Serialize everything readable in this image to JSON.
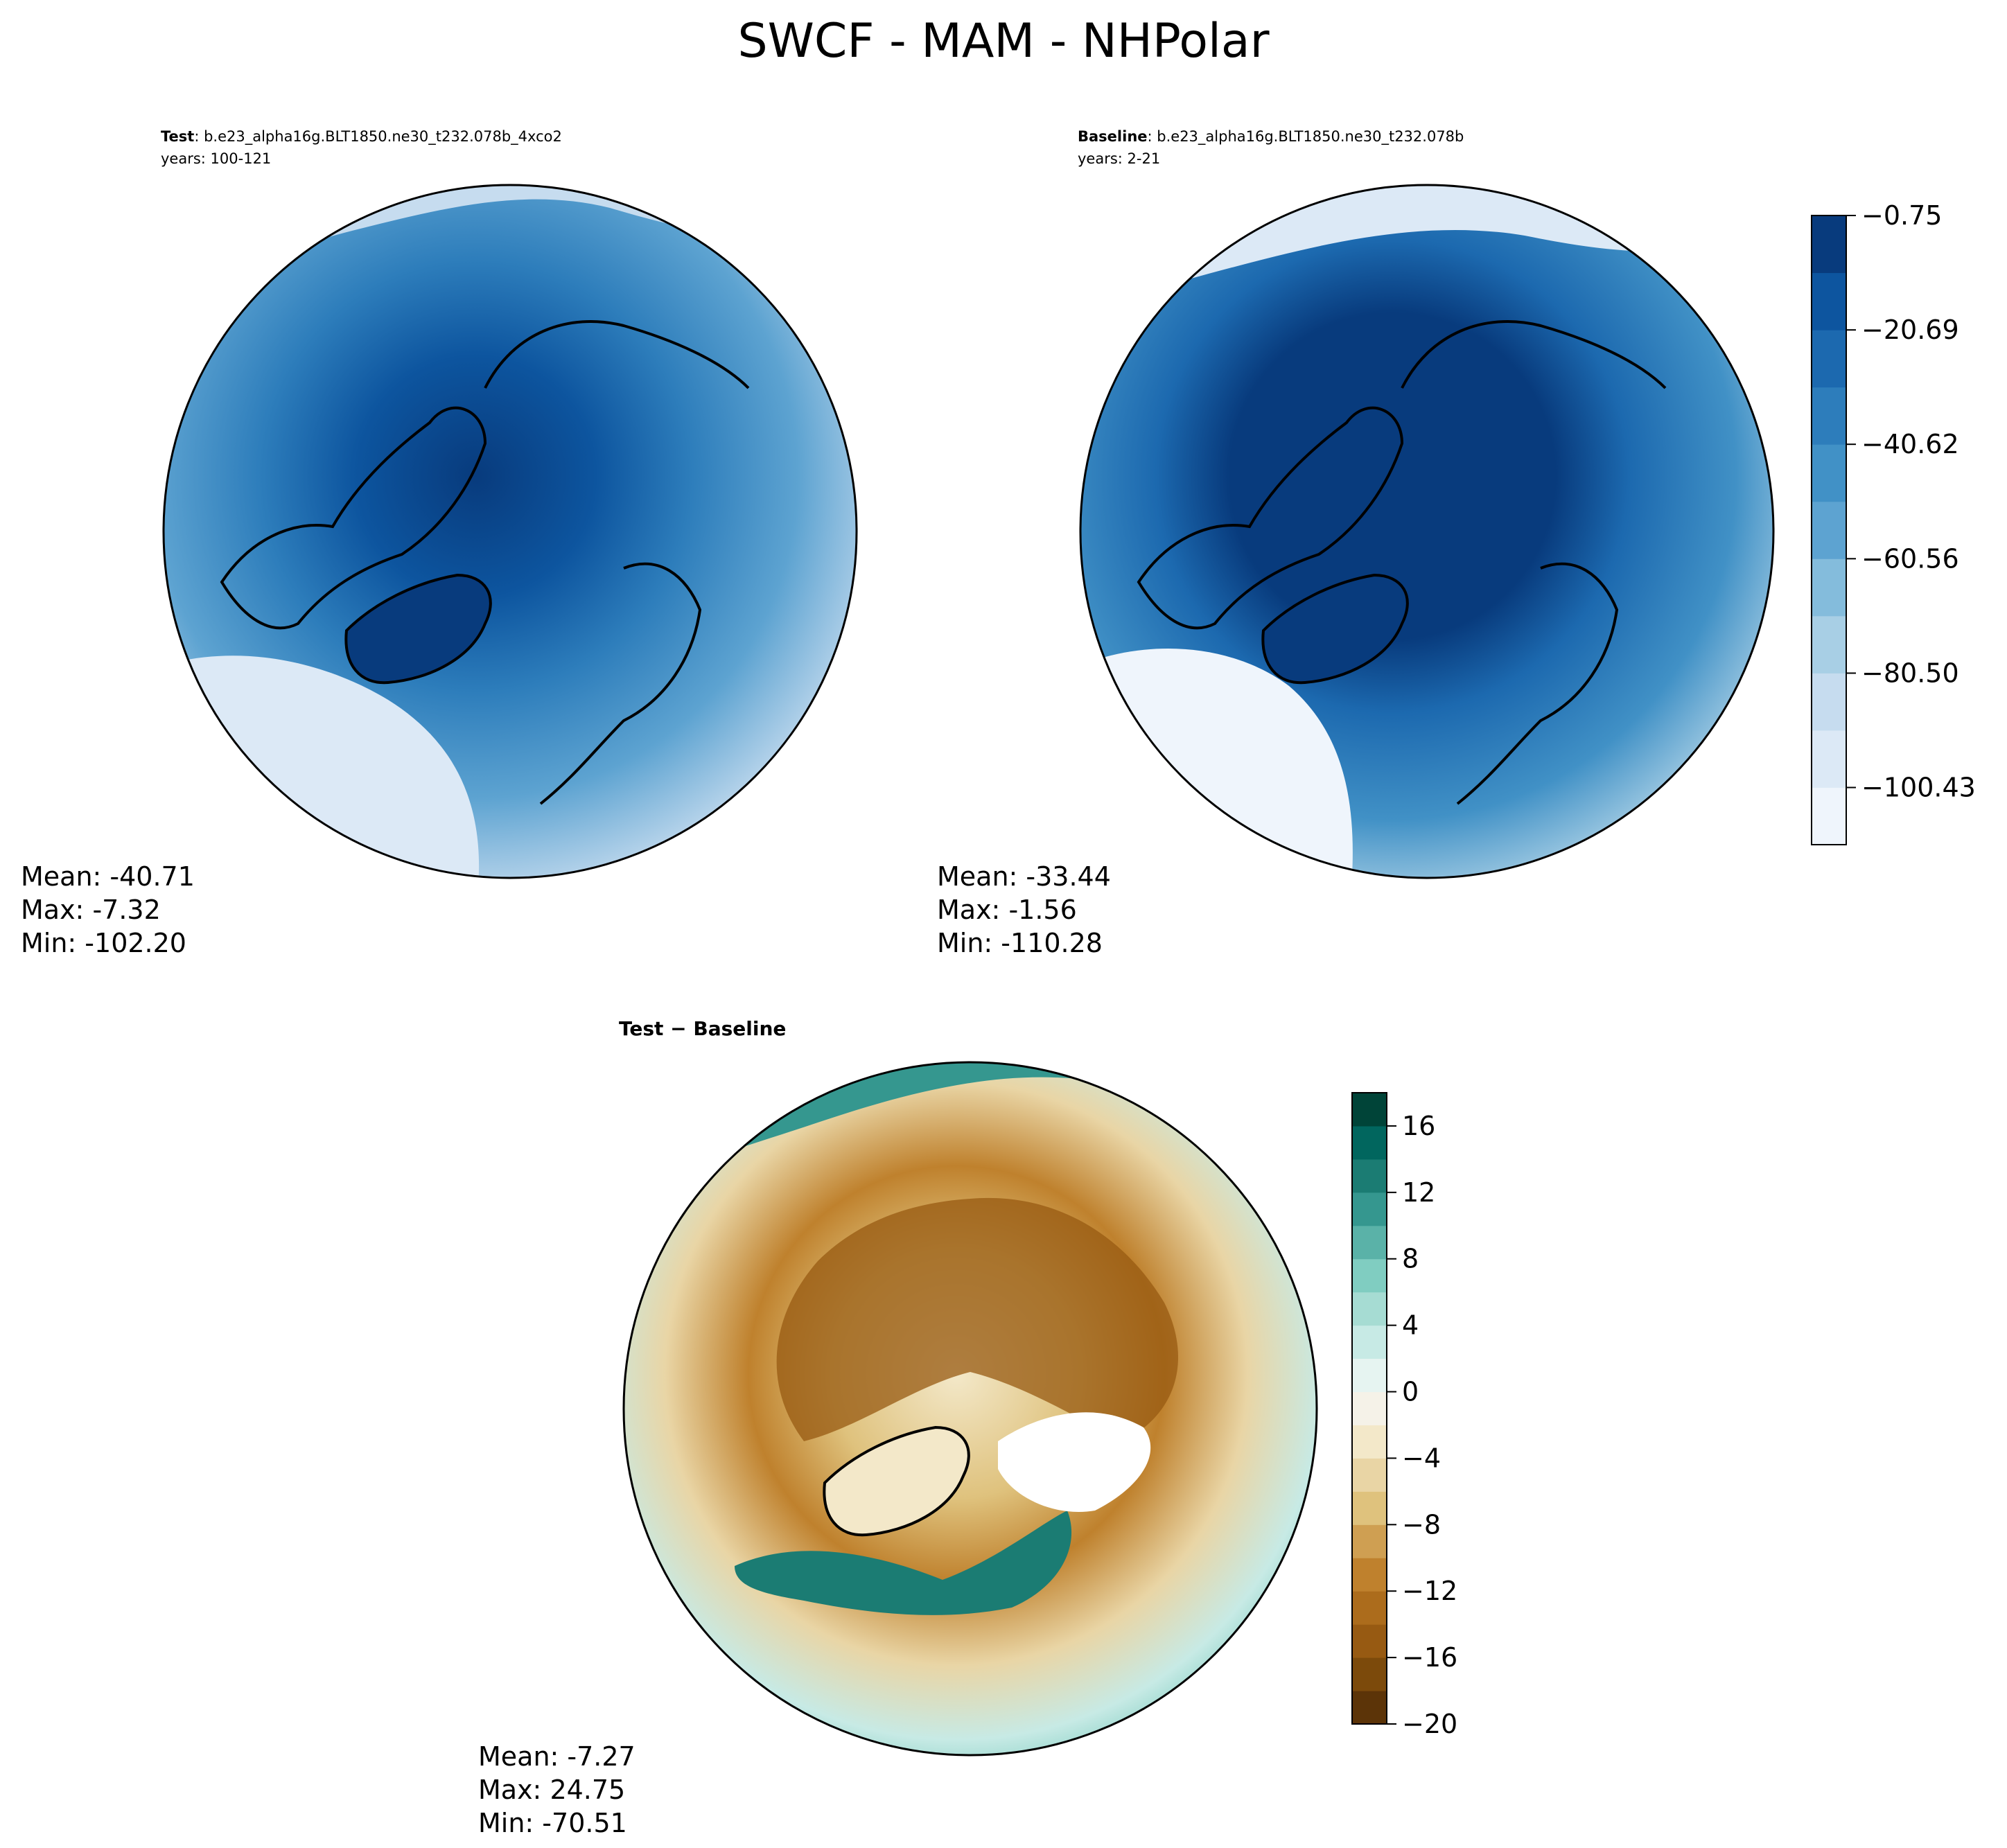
{
  "chart_data": {
    "type": "heatmap",
    "title": "SWCF - MAM - NHPolar",
    "projection": "north-polar-stereographic",
    "panels": [
      {
        "id": "test",
        "label_bold": "Test",
        "label_rest": ": b.e23_alpha16g.BLT1850.ne30_t232.078b_4xco2",
        "years": "years: 100-121",
        "stats": {
          "mean": "Mean: -40.71",
          "max": "Max: -7.32",
          "min": "Min: -102.20"
        },
        "colormap": "blues"
      },
      {
        "id": "baseline",
        "label_bold": "Baseline",
        "label_rest": ": b.e23_alpha16g.BLT1850.ne30_t232.078b",
        "years": "years: 2-21",
        "stats": {
          "mean": "Mean: -33.44",
          "max": "Max: -1.56",
          "min": "Min: -110.28"
        },
        "colormap": "blues"
      },
      {
        "id": "diff",
        "label_bold": "Test − Baseline",
        "stats": {
          "mean": "Mean: -7.27",
          "max": "Max: 24.75",
          "min": "Min: -70.51"
        },
        "colormap": "brown-teal"
      }
    ],
    "colorbars": [
      {
        "id": "blues",
        "range": [
          -110.39,
          -0.75
        ],
        "ticks": [
          -0.75,
          -20.69,
          -40.62,
          -60.56,
          -80.5,
          -100.43
        ],
        "tick_labels": [
          "−0.75",
          "−20.69",
          "−40.62",
          "−60.56",
          "−80.50",
          "−100.43"
        ],
        "levels": 11,
        "colors": [
          "#eff5fc",
          "#dce9f6",
          "#c6dcef",
          "#a8cfe5",
          "#84bcdc",
          "#5da3d1",
          "#4191c6",
          "#2d7dbb",
          "#1c69af",
          "#0d559f",
          "#083b7d"
        ]
      },
      {
        "id": "brown-teal",
        "range": [
          -20,
          18
        ],
        "ticks": [
          16,
          12,
          8,
          4,
          0,
          -4,
          -8,
          -12,
          -16,
          -20
        ],
        "tick_labels": [
          "16",
          "12",
          "8",
          "4",
          "0",
          "−4",
          "−8",
          "−12",
          "−16",
          "−20"
        ],
        "levels": 19,
        "colors": [
          "#5c3408",
          "#7c4a0b",
          "#975a12",
          "#ac6c1c",
          "#bf812d",
          "#cf9f52",
          "#dfc27d",
          "#e9d5a5",
          "#f3e8c9",
          "#f5f2e8",
          "#e6f4f1",
          "#c7eae5",
          "#a6dcd3",
          "#80cdc1",
          "#5ab2a8",
          "#35978f",
          "#1b7c73",
          "#01665e",
          "#004438"
        ]
      }
    ]
  }
}
